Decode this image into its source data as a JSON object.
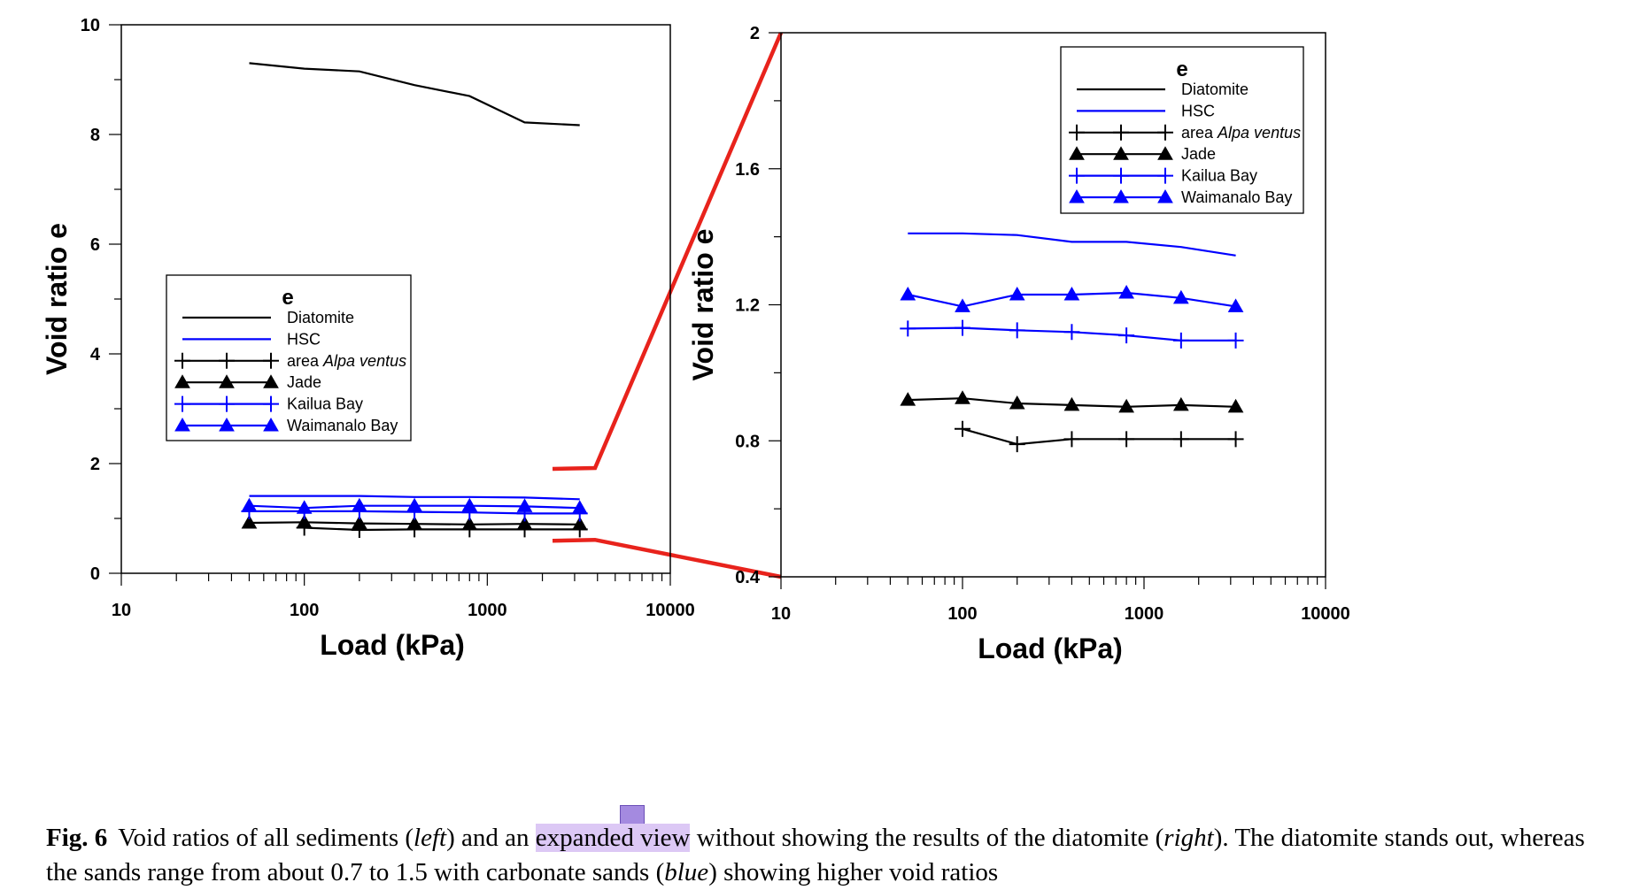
{
  "chart_data": [
    {
      "type": "line",
      "panel": "left",
      "xlabel": "Load (kPa)",
      "ylabel": "Void ratio e",
      "xscale": "log",
      "xlim": [
        10,
        10000
      ],
      "ylim": [
        0,
        10
      ],
      "x_ticks": [
        "10",
        "100",
        "1000",
        "10000"
      ],
      "y_ticks": [
        "0",
        "2",
        "4",
        "6",
        "8",
        "10"
      ],
      "legend_title": "e",
      "legend_position": "middle-left",
      "series": [
        {
          "name": "Diatomite",
          "color": "#000000",
          "marker": "none",
          "x": [
            50,
            100,
            200,
            400,
            800,
            1600,
            3200
          ],
          "y": [
            9.3,
            9.2,
            9.15,
            8.9,
            8.7,
            8.22,
            8.17
          ]
        },
        {
          "name": "HSC",
          "color": "#0000ff",
          "marker": "none",
          "x": [
            50,
            100,
            200,
            400,
            800,
            1600,
            3200
          ],
          "y": [
            1.41,
            1.41,
            1.41,
            1.39,
            1.39,
            1.38,
            1.35
          ]
        },
        {
          "name": "area Alpa ventus",
          "color": "#000000",
          "marker": "plus",
          "x": [
            100,
            200,
            400,
            800,
            1600,
            3200
          ],
          "y": [
            0.83,
            0.79,
            0.8,
            0.8,
            0.8,
            0.8
          ]
        },
        {
          "name": "Jade",
          "color": "#000000",
          "marker": "triangle",
          "x": [
            50,
            100,
            200,
            400,
            800,
            1600,
            3200
          ],
          "y": [
            0.92,
            0.93,
            0.91,
            0.9,
            0.89,
            0.9,
            0.89
          ]
        },
        {
          "name": "Kailua Bay",
          "color": "#0000ff",
          "marker": "plus",
          "x": [
            50,
            100,
            200,
            400,
            800,
            1600,
            3200
          ],
          "y": [
            1.13,
            1.13,
            1.13,
            1.12,
            1.11,
            1.09,
            1.09
          ]
        },
        {
          "name": "Waimanalo Bay",
          "color": "#0000ff",
          "marker": "triangle",
          "x": [
            50,
            100,
            200,
            400,
            800,
            1600,
            3200
          ],
          "y": [
            1.23,
            1.19,
            1.23,
            1.23,
            1.23,
            1.22,
            1.19
          ]
        }
      ]
    },
    {
      "type": "line",
      "panel": "right",
      "xlabel": "Load (kPa)",
      "ylabel": "Void ratio e",
      "xscale": "log",
      "xlim": [
        10,
        10000
      ],
      "ylim": [
        0.4,
        2
      ],
      "x_ticks": [
        "10",
        "100",
        "1000",
        "10000"
      ],
      "y_ticks": [
        "0.4",
        "0.8",
        "1.2",
        "1.6",
        "2"
      ],
      "legend_title": "e",
      "legend_position": "top-right",
      "series": [
        {
          "name": "HSC",
          "color": "#0000ff",
          "marker": "none",
          "x": [
            50,
            100,
            200,
            400,
            800,
            1600,
            3200
          ],
          "y": [
            1.41,
            1.41,
            1.405,
            1.385,
            1.385,
            1.37,
            1.345
          ]
        },
        {
          "name": "Waimanalo Bay",
          "color": "#0000ff",
          "marker": "triangle",
          "x": [
            50,
            100,
            200,
            400,
            800,
            1600,
            3200
          ],
          "y": [
            1.23,
            1.195,
            1.23,
            1.23,
            1.235,
            1.22,
            1.195
          ]
        },
        {
          "name": "Kailua Bay",
          "color": "#0000ff",
          "marker": "plus",
          "x": [
            50,
            100,
            200,
            400,
            800,
            1600,
            3200
          ],
          "y": [
            1.13,
            1.132,
            1.125,
            1.12,
            1.11,
            1.095,
            1.095
          ]
        },
        {
          "name": "Jade",
          "color": "#000000",
          "marker": "triangle",
          "x": [
            50,
            100,
            200,
            400,
            800,
            1600,
            3200
          ],
          "y": [
            0.92,
            0.925,
            0.91,
            0.905,
            0.9,
            0.905,
            0.9
          ]
        },
        {
          "name": "area Alpa ventus",
          "color": "#000000",
          "marker": "plus",
          "x": [
            100,
            200,
            400,
            800,
            1600,
            3200
          ],
          "y": [
            0.835,
            0.79,
            0.805,
            0.805,
            0.805,
            0.805
          ]
        }
      ]
    }
  ],
  "legend_entries": [
    {
      "name_plain": "Diatomite",
      "name_italic": "",
      "color": "#000000",
      "marker": "none"
    },
    {
      "name_plain": "HSC",
      "name_italic": "",
      "color": "#0000ff",
      "marker": "none"
    },
    {
      "name_plain": "area ",
      "name_italic": "Alpa ventus",
      "color": "#000000",
      "marker": "plus"
    },
    {
      "name_plain": "Jade",
      "name_italic": "",
      "color": "#000000",
      "marker": "triangle"
    },
    {
      "name_plain": "Kailua Bay",
      "name_italic": "",
      "color": "#0000ff",
      "marker": "plus"
    },
    {
      "name_plain": "Waimanalo Bay",
      "name_italic": "",
      "color": "#0000ff",
      "marker": "triangle"
    }
  ],
  "zoom_indicator": {
    "color": "#e8231c",
    "from_y_range": [
      0.4,
      2.0
    ]
  },
  "caption": {
    "label": "Fig. 6",
    "part1": "Void ratios of all sediments (",
    "left_word": "left",
    "part2": ") and an ",
    "highlight": "expanded view",
    "part3": " without showing the results of the diatomite (",
    "right_word": "right",
    "part4": "). The diatomite stands out, whereas the sands range from about 0.7 to 1.5 with carbonate sands (",
    "blue_word": "blue",
    "part5": ") showing higher void ratios",
    "highlight_color": "#dcc8f5",
    "note_color": "#a48ae0"
  }
}
